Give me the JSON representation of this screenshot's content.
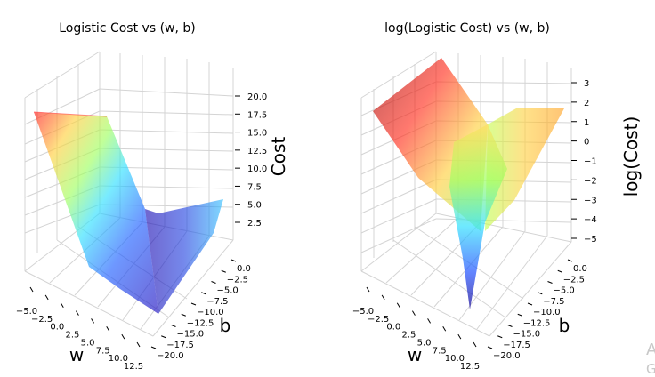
{
  "chart_data": [
    {
      "type": "surface3d",
      "title": "Logistic Cost vs (w, b)",
      "xlabel": "w",
      "ylabel": "b",
      "zlabel": "Cost",
      "colormap": "jet",
      "surface_alpha": 0.6,
      "grid": true,
      "xlim": [
        -5,
        12.5
      ],
      "ylim": [
        -20,
        0
      ],
      "zlim": [
        0,
        21.5
      ],
      "xticks": [
        "−5.0",
        "−2.5",
        "0.0",
        "2.5",
        "5.0",
        "7.5",
        "10.0",
        "12.5"
      ],
      "yticks": [
        "0.0",
        "−2.5",
        "−5.0",
        "−7.5",
        "−10.0",
        "−12.5",
        "−15.0",
        "−17.5",
        "−20.0"
      ],
      "zticks": [
        "2.5",
        "5.0",
        "7.5",
        "10.0",
        "12.5",
        "15.0",
        "17.5",
        "20.0"
      ],
      "corner_values": {
        "w_min_b_max": 19.3,
        "w_min_b_min": 1.5,
        "w_max_b_max": 6.5,
        "w_max_b_min": 0.2
      }
    },
    {
      "type": "surface3d",
      "title": "log(Logistic Cost) vs (w, b)",
      "xlabel": "w",
      "ylabel": "b",
      "zlabel": "log(Cost)",
      "colormap": "jet",
      "surface_alpha": 0.6,
      "grid": true,
      "xlim": [
        -5,
        12.5
      ],
      "ylim": [
        -20,
        0
      ],
      "zlim": [
        -5.5,
        3.2
      ],
      "xticks": [
        "−5.0",
        "−2.5",
        "0.0",
        "2.5",
        "5.0",
        "7.5",
        "10.0",
        "12.5"
      ],
      "yticks": [
        "0.0",
        "−2.5",
        "−5.0",
        "−7.5",
        "−10.0",
        "−12.5",
        "−15.0",
        "−17.5",
        "−20.0"
      ],
      "zticks": [
        "3",
        "2",
        "1",
        "0",
        "−1",
        "−2",
        "−3",
        "−4",
        "−5"
      ],
      "min_log_cost": -5.3
    }
  ],
  "watermark": {
    "line1": "A",
    "line2": "G"
  }
}
